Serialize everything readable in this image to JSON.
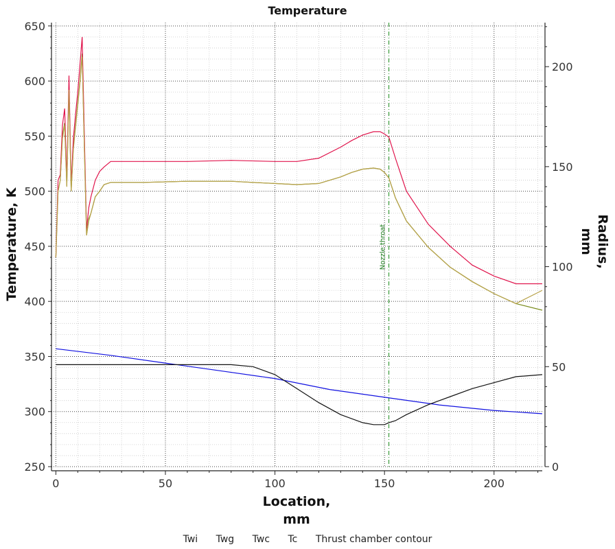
{
  "chart_data": {
    "type": "line",
    "title": "Temperature",
    "xlabel": "Location,\nmm",
    "ylabel": "Temperature, K",
    "y2label": "Radius,\nmm",
    "xlim": [
      -2,
      222
    ],
    "ylim": [
      250,
      653
    ],
    "y2lim": [
      0,
      222
    ],
    "x_ticks": [
      0,
      50,
      100,
      150,
      200
    ],
    "y_ticks": [
      250,
      300,
      350,
      400,
      450,
      500,
      550,
      600,
      650
    ],
    "y2_ticks": [
      0,
      50,
      100,
      150,
      200
    ],
    "grid": true,
    "legend_position": "bottom",
    "annotation": {
      "text": "Nozzle throat",
      "x": 152
    },
    "series": [
      {
        "name": "Twi",
        "axis": "left",
        "color": "#7a8c1e",
        "x": [
          0,
          1,
          2,
          3,
          4,
          5,
          6,
          7,
          8,
          9,
          10,
          11,
          12,
          13,
          14,
          15,
          16,
          18,
          20,
          22,
          25,
          30,
          40,
          60,
          80,
          100,
          110,
          120,
          130,
          135,
          140,
          145,
          148,
          150,
          152,
          155,
          160,
          170,
          180,
          190,
          200,
          210,
          222
        ],
        "y": [
          440,
          500,
          510,
          550,
          562,
          505,
          595,
          500,
          540,
          560,
          580,
          600,
          625,
          540,
          460,
          475,
          480,
          495,
          500,
          506,
          508,
          508,
          508,
          509,
          509,
          507,
          506,
          507,
          513,
          517,
          520,
          521,
          520,
          517,
          512,
          494,
          473,
          449,
          431,
          418,
          407,
          398,
          392
        ]
      },
      {
        "name": "Twg",
        "axis": "left",
        "color": "#e0144c",
        "x": [
          0,
          1,
          2,
          3,
          4,
          5,
          6,
          7,
          8,
          9,
          10,
          11,
          12,
          13,
          14,
          15,
          16,
          18,
          20,
          22,
          25,
          30,
          40,
          60,
          80,
          100,
          110,
          120,
          130,
          135,
          140,
          145,
          148,
          150,
          152,
          155,
          160,
          170,
          180,
          190,
          200,
          210,
          222
        ],
        "y": [
          440,
          510,
          515,
          560,
          575,
          510,
          605,
          505,
          548,
          570,
          590,
          615,
          640,
          550,
          465,
          485,
          495,
          510,
          518,
          522,
          527,
          527,
          527,
          527,
          528,
          527,
          527,
          530,
          540,
          546,
          551,
          554,
          554,
          552,
          549,
          530,
          500,
          470,
          450,
          433,
          423,
          416,
          416
        ]
      },
      {
        "name": "Twc",
        "axis": "left",
        "color": "#b8a24a",
        "x": [
          0,
          1,
          2,
          3,
          4,
          5,
          6,
          7,
          8,
          9,
          10,
          11,
          12,
          13,
          14,
          15,
          16,
          18,
          20,
          22,
          25,
          30,
          40,
          60,
          80,
          100,
          110,
          120,
          130,
          135,
          140,
          145,
          148,
          150,
          152,
          155,
          160,
          170,
          180,
          190,
          200,
          210,
          222
        ],
        "y": [
          440,
          500,
          510,
          548,
          560,
          504,
          592,
          500,
          538,
          558,
          578,
          598,
          622,
          538,
          460,
          473,
          480,
          495,
          500,
          506,
          508,
          508,
          508,
          509,
          509,
          507,
          506,
          507,
          513,
          517,
          520,
          521,
          520,
          517,
          512,
          494,
          473,
          449,
          431,
          418,
          407,
          398,
          410
        ]
      },
      {
        "name": "Tc",
        "axis": "left",
        "color": "#1010e0",
        "x": [
          0,
          25,
          50,
          75,
          100,
          125,
          150,
          175,
          200,
          222
        ],
        "y": [
          357,
          351,
          344,
          337,
          330,
          320,
          313,
          306,
          301,
          298
        ]
      },
      {
        "name": "Thrust chamber contour",
        "axis": "right",
        "color": "#111111",
        "x": [
          0,
          20,
          40,
          60,
          80,
          90,
          100,
          110,
          120,
          130,
          140,
          145,
          148,
          150,
          152,
          155,
          160,
          170,
          180,
          190,
          200,
          210,
          222
        ],
        "y": [
          51,
          51,
          51,
          51,
          51,
          50,
          46,
          39,
          32,
          26,
          22,
          21,
          21,
          21,
          22,
          23,
          26,
          31,
          35,
          39,
          42,
          45,
          46
        ]
      }
    ]
  }
}
